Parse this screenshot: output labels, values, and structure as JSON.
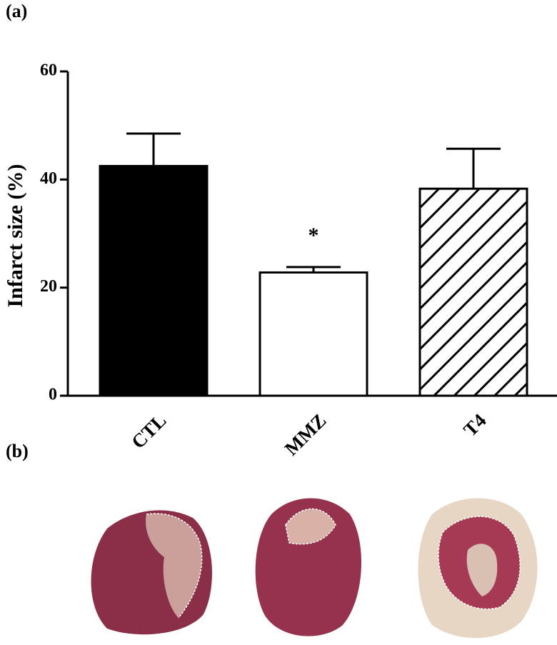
{
  "chart_data": {
    "type": "bar",
    "panel_a": "(a)",
    "panel_b": "(b)",
    "ylabel": "Infarct size (%)",
    "categories": [
      "CTL",
      "MMZ",
      "T4"
    ],
    "values": [
      42.5,
      22.8,
      38.3
    ],
    "errors": [
      6.0,
      1.0,
      7.4
    ],
    "annotation_labels": [
      null,
      "*",
      null
    ],
    "fills": [
      "#000000",
      "#ffffff",
      "hatch"
    ],
    "ylim": [
      0,
      60
    ],
    "yticks": [
      0,
      20,
      40,
      60
    ],
    "grid": false
  }
}
